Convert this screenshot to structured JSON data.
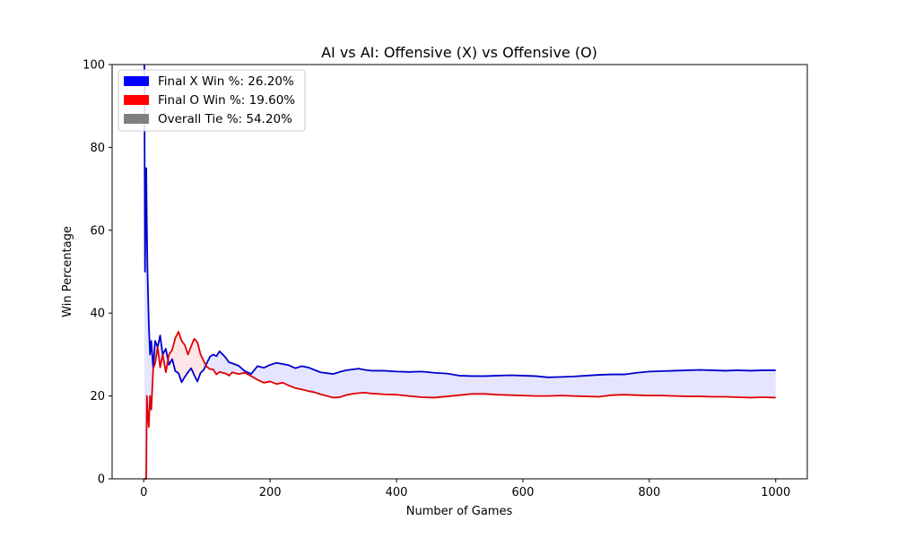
{
  "chart_data": {
    "type": "line",
    "title": "AI vs AI: Offensive (X) vs Offensive (O)",
    "xlabel": "Number of Games",
    "ylabel": "Win Percentage",
    "xlim": [
      -50,
      1050
    ],
    "ylim": [
      0,
      100
    ],
    "xticks": [
      0,
      200,
      400,
      600,
      800,
      1000
    ],
    "yticks": [
      0,
      20,
      40,
      60,
      80,
      100
    ],
    "grid": false,
    "legend_position": "top-left",
    "legend": [
      {
        "label": "Final X Win %: 26.20%",
        "color": "#0000ff"
      },
      {
        "label": "Final O Win %: 19.60%",
        "color": "#ff0000"
      },
      {
        "label": "Overall Tie %: 54.20%",
        "color": "#808080"
      }
    ],
    "series": [
      {
        "color": "#0000cc",
        "x": [
          1,
          2,
          3,
          4,
          5,
          6,
          8,
          10,
          12,
          15,
          18,
          22,
          26,
          30,
          35,
          40,
          45,
          50,
          55,
          60,
          65,
          70,
          75,
          80,
          85,
          90,
          95,
          100,
          105,
          110,
          115,
          120,
          125,
          130,
          135,
          140,
          150,
          160,
          170,
          180,
          190,
          200,
          210,
          220,
          230,
          240,
          250,
          260,
          270,
          280,
          290,
          300,
          310,
          320,
          330,
          340,
          350,
          360,
          380,
          400,
          420,
          440,
          460,
          480,
          500,
          520,
          540,
          560,
          580,
          600,
          620,
          640,
          660,
          680,
          700,
          720,
          740,
          760,
          780,
          800,
          820,
          840,
          860,
          880,
          900,
          920,
          940,
          960,
          980,
          1000
        ],
        "y": [
          100,
          50,
          66.7,
          75,
          60,
          50,
          37.5,
          30,
          33.3,
          26.7,
          33.3,
          31.8,
          34.6,
          30,
          31.4,
          27.5,
          28.9,
          26,
          25.5,
          23.3,
          24.6,
          25.7,
          26.7,
          25,
          23.5,
          25.6,
          26.3,
          28,
          29.5,
          30,
          29.6,
          30.8,
          30,
          29.2,
          28.1,
          27.9,
          27.3,
          26,
          25.3,
          27.2,
          26.8,
          27.5,
          28,
          27.7,
          27.4,
          26.7,
          27.2,
          26.9,
          26.3,
          25.7,
          25.5,
          25.3,
          25.8,
          26.2,
          26.4,
          26.6,
          26.3,
          26.1,
          26.1,
          25.9,
          25.8,
          25.9,
          25.6,
          25.4,
          24.9,
          24.8,
          24.8,
          24.9,
          25,
          24.9,
          24.8,
          24.5,
          24.6,
          24.7,
          24.9,
          25.1,
          25.2,
          25.2,
          25.6,
          25.9,
          26,
          26.1,
          26.2,
          26.3,
          26.2,
          26.1,
          26.2,
          26.1,
          26.2,
          26.2
        ]
      },
      {
        "color": "#e00000",
        "x": [
          1,
          2,
          3,
          4,
          5,
          6,
          8,
          10,
          12,
          15,
          18,
          22,
          26,
          30,
          35,
          40,
          45,
          50,
          55,
          60,
          65,
          70,
          75,
          80,
          85,
          90,
          95,
          100,
          105,
          110,
          115,
          120,
          125,
          130,
          135,
          140,
          150,
          160,
          170,
          180,
          190,
          200,
          210,
          220,
          230,
          240,
          250,
          260,
          270,
          280,
          290,
          300,
          310,
          320,
          330,
          340,
          350,
          360,
          380,
          400,
          420,
          440,
          460,
          480,
          500,
          520,
          540,
          560,
          580,
          600,
          620,
          640,
          660,
          680,
          700,
          720,
          740,
          760,
          780,
          800,
          820,
          840,
          860,
          880,
          900,
          920,
          940,
          960,
          980,
          1000
        ],
        "y": [
          0,
          0,
          0,
          0,
          20,
          16.7,
          12.5,
          20,
          16.7,
          26.7,
          27.8,
          31.8,
          26.9,
          30,
          25.7,
          30,
          31.1,
          34,
          35.5,
          33.3,
          32.3,
          30,
          32,
          33.8,
          32.9,
          30,
          28.4,
          27,
          26.5,
          26.4,
          25.2,
          25.8,
          25.6,
          25.4,
          24.9,
          25.7,
          25.3,
          25.6,
          24.8,
          23.9,
          23.2,
          23.5,
          22.9,
          23.2,
          22.5,
          21.9,
          21.6,
          21.2,
          20.9,
          20.4,
          20,
          19.6,
          19.7,
          20.2,
          20.5,
          20.7,
          20.8,
          20.6,
          20.4,
          20.3,
          20,
          19.7,
          19.6,
          19.9,
          20.2,
          20.5,
          20.5,
          20.3,
          20.2,
          20.1,
          20,
          20,
          20.1,
          20,
          19.9,
          19.8,
          20.2,
          20.3,
          20.2,
          20.1,
          20.1,
          20,
          19.9,
          19.9,
          19.8,
          19.8,
          19.7,
          19.6,
          19.7,
          19.6
        ]
      }
    ]
  }
}
